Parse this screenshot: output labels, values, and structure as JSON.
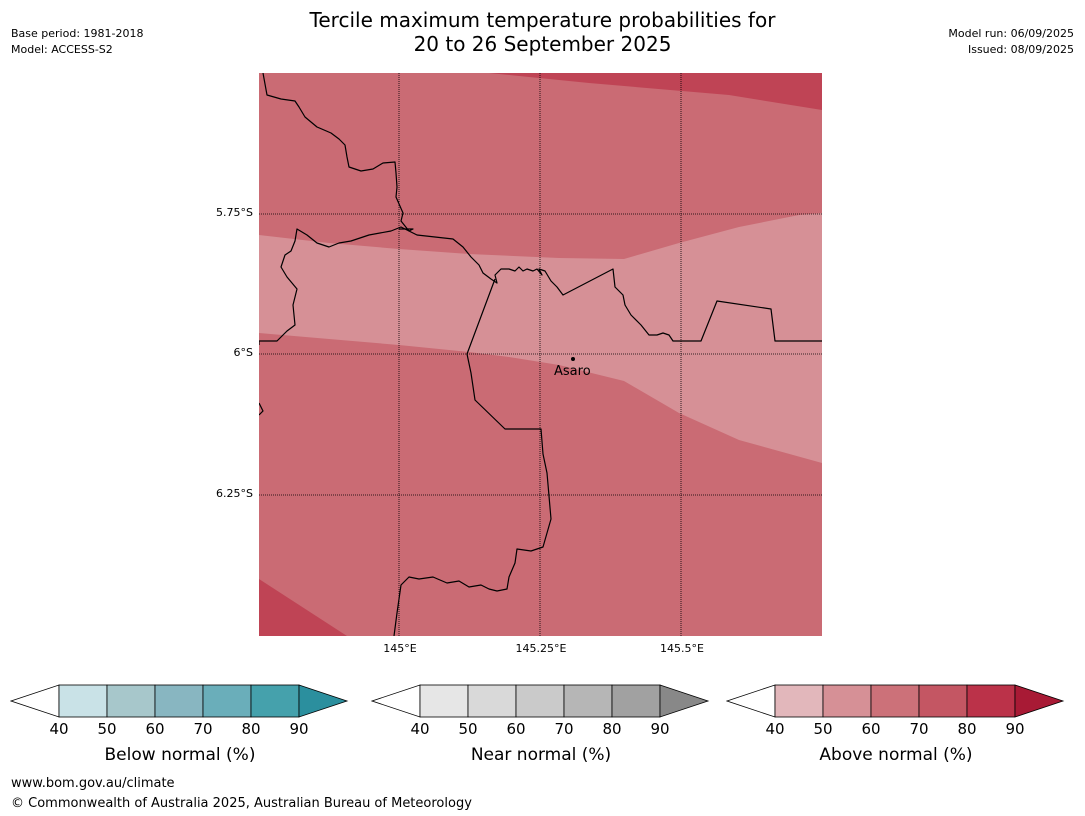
{
  "header": {
    "title_line1": "Tercile maximum temperature probabilities for",
    "title_line2": "20 to 26 September 2025",
    "base_period": "Base period: 1981-2018",
    "model": "Model: ACCESS-S2",
    "model_run": "Model run: 06/09/2025",
    "issued": "Issued: 08/09/2025"
  },
  "map": {
    "latitude_labels": [
      "5.75°S",
      "6°S",
      "6.25°S"
    ],
    "longitude_labels": [
      "145°E",
      "145.25°E",
      "145.5°E"
    ],
    "place": {
      "name": "Asaro"
    },
    "colors": {
      "above_50_60": "#d69096",
      "above_60_70": "#ca6b74",
      "above_80_90": "#bf4455",
      "border": "#000000",
      "grid": "#000000"
    }
  },
  "colorbars": [
    {
      "label": "Below normal (%)",
      "ticks": [
        "40",
        "50",
        "60",
        "70",
        "80",
        "90"
      ],
      "colors": [
        "#ffffff",
        "#c9e2e7",
        "#a7c7cb",
        "#88b6c1",
        "#6aaeba",
        "#45a1ac",
        "#2b8f9e"
      ]
    },
    {
      "label": "Near normal (%)",
      "ticks": [
        "40",
        "50",
        "60",
        "70",
        "80",
        "90"
      ],
      "colors": [
        "#ffffff",
        "#e6e6e6",
        "#d9d9d9",
        "#cacaca",
        "#b6b6b6",
        "#a1a1a1",
        "#888888"
      ]
    },
    {
      "label": "Above normal (%)",
      "ticks": [
        "40",
        "50",
        "60",
        "70",
        "80",
        "90"
      ],
      "colors": [
        "#ffffff",
        "#e2b7bb",
        "#d69096",
        "#cc7179",
        "#c45663",
        "#bb3249",
        "#a81a35"
      ]
    }
  ],
  "footer": {
    "url": "www.bom.gov.au/climate",
    "copyright": "© Commonwealth of Australia 2025, Australian Bureau of Meteorology"
  }
}
